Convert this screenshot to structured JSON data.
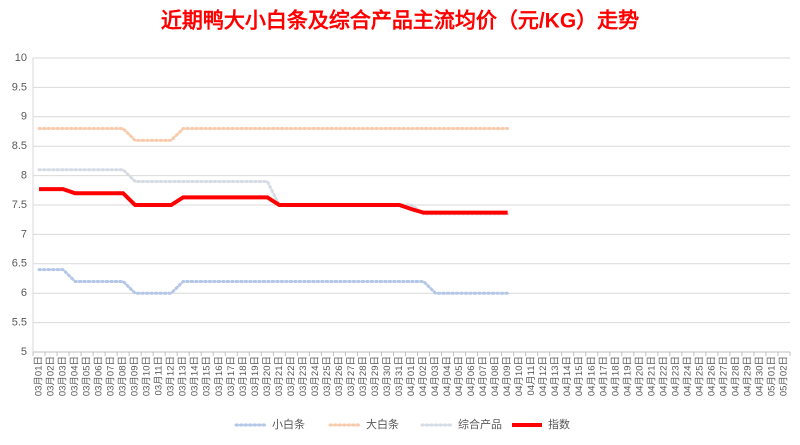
{
  "chart_data": {
    "type": "line",
    "title": "近期鸭大小白条及综合产品主流均价（元/KG）走势",
    "categories": [
      "03月01日",
      "03月02日",
      "03月03日",
      "03月04日",
      "03月05日",
      "03月06日",
      "03月07日",
      "03月08日",
      "03月09日",
      "03月10日",
      "03月11日",
      "03月12日",
      "03月13日",
      "03月14日",
      "03月15日",
      "03月16日",
      "03月17日",
      "03月18日",
      "03月19日",
      "03月20日",
      "03月21日",
      "03月22日",
      "03月23日",
      "03月24日",
      "03月25日",
      "03月26日",
      "03月27日",
      "03月28日",
      "03月29日",
      "03月30日",
      "03月31日",
      "04月01日",
      "04月02日",
      "04月03日",
      "04月04日",
      "04月05日",
      "04月06日",
      "04月07日",
      "04月08日",
      "04月09日",
      "04月10日",
      "04月11日",
      "04月12日",
      "04月13日",
      "04月14日",
      "04月15日",
      "04月16日",
      "04月17日",
      "04月18日",
      "04月19日",
      "04月20日",
      "04月21日",
      "04月22日",
      "04月23日",
      "04月24日",
      "04月25日",
      "04月26日",
      "04月27日",
      "04月28日",
      "04月29日",
      "04月30日",
      "05月01日",
      "05月02日"
    ],
    "series": [
      {
        "name": "小白条",
        "color": "#b4c7e7",
        "dash": "dotted",
        "values": [
          6.4,
          6.4,
          6.4,
          6.2,
          6.2,
          6.2,
          6.2,
          6.2,
          6,
          6,
          6,
          6,
          6.2,
          6.2,
          6.2,
          6.2,
          6.2,
          6.2,
          6.2,
          6.2,
          6.2,
          6.2,
          6.2,
          6.2,
          6.2,
          6.2,
          6.2,
          6.2,
          6.2,
          6.2,
          6.2,
          6.2,
          6.2,
          6,
          6,
          6,
          6,
          6,
          6,
          6,
          null,
          null,
          null,
          null,
          null,
          null,
          null,
          null,
          null,
          null,
          null,
          null,
          null,
          null,
          null,
          null,
          null,
          null,
          null,
          null,
          null,
          null,
          null
        ]
      },
      {
        "name": "大白条",
        "color": "#f8cbad",
        "dash": "dotted",
        "values": [
          8.8,
          8.8,
          8.8,
          8.8,
          8.8,
          8.8,
          8.8,
          8.8,
          8.6,
          8.6,
          8.6,
          8.6,
          8.8,
          8.8,
          8.8,
          8.8,
          8.8,
          8.8,
          8.8,
          8.8,
          8.8,
          8.8,
          8.8,
          8.8,
          8.8,
          8.8,
          8.8,
          8.8,
          8.8,
          8.8,
          8.8,
          8.8,
          8.8,
          8.8,
          8.8,
          8.8,
          8.8,
          8.8,
          8.8,
          8.8,
          null,
          null,
          null,
          null,
          null,
          null,
          null,
          null,
          null,
          null,
          null,
          null,
          null,
          null,
          null,
          null,
          null,
          null,
          null,
          null,
          null,
          null,
          null
        ]
      },
      {
        "name": "综合产品",
        "color": "#d6dce5",
        "dash": "dotted",
        "values": [
          8.1,
          8.1,
          8.1,
          8.1,
          8.1,
          8.1,
          8.1,
          8.1,
          7.9,
          7.9,
          7.9,
          7.9,
          7.9,
          7.9,
          7.9,
          7.9,
          7.9,
          7.9,
          7.9,
          7.9,
          7.5,
          7.5,
          7.5,
          7.5,
          7.5,
          7.5,
          7.5,
          7.5,
          7.5,
          7.5,
          7.5,
          7.5,
          7.35,
          7.35,
          7.35,
          7.35,
          7.35,
          7.35,
          7.35,
          7.35,
          null,
          null,
          null,
          null,
          null,
          null,
          null,
          null,
          null,
          null,
          null,
          null,
          null,
          null,
          null,
          null,
          null,
          null,
          null,
          null,
          null,
          null,
          null
        ]
      },
      {
        "name": "指数",
        "color": "#ff0000",
        "dash": "solid",
        "values": [
          7.77,
          7.77,
          7.77,
          7.7,
          7.7,
          7.7,
          7.7,
          7.7,
          7.5,
          7.5,
          7.5,
          7.5,
          7.63,
          7.63,
          7.63,
          7.63,
          7.63,
          7.63,
          7.63,
          7.63,
          7.5,
          7.5,
          7.5,
          7.5,
          7.5,
          7.5,
          7.5,
          7.5,
          7.5,
          7.5,
          7.5,
          7.43,
          7.37,
          7.37,
          7.37,
          7.37,
          7.37,
          7.37,
          7.37,
          7.37,
          null,
          null,
          null,
          null,
          null,
          null,
          null,
          null,
          null,
          null,
          null,
          null,
          null,
          null,
          null,
          null,
          null,
          null,
          null,
          null,
          null,
          null,
          null
        ]
      }
    ],
    "ylim": [
      5,
      10
    ],
    "yticks": [
      5,
      5.5,
      6,
      6.5,
      7,
      7.5,
      8,
      8.5,
      9,
      9.5,
      10
    ],
    "grid": true,
    "legend": "bottom"
  }
}
